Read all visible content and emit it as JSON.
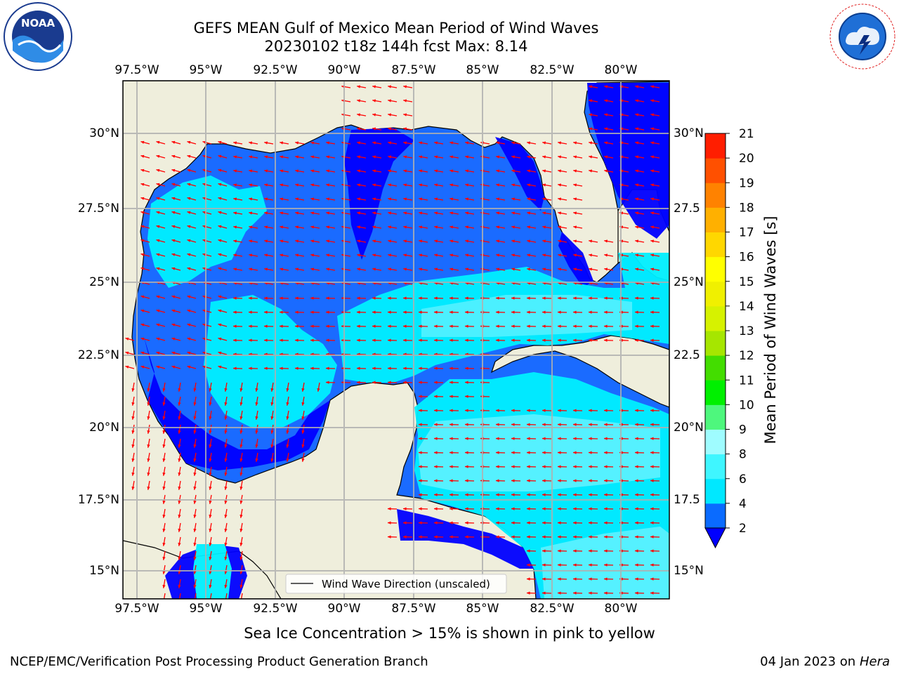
{
  "title_line1": "GEFS MEAN Gulf of Mexico Mean Period of Wind Waves",
  "title_line2": "20230102 t18z 144h fcst   Max: 8.14",
  "longitude_labels": [
    "97.5°W",
    "95°W",
    "92.5°W",
    "90°W",
    "87.5°W",
    "85°W",
    "82.5°W",
    "80°W"
  ],
  "latitude_labels": [
    "30°N",
    "27.5°N",
    "25°N",
    "22.5°N",
    "20°N",
    "17.5°N",
    "15°N"
  ],
  "latitude_labels_right": [
    "30°N",
    "27.5",
    "25°N",
    "22.5",
    "20°N",
    "17.5",
    "15°N"
  ],
  "colorbar": {
    "label": "Mean Period of Wind Waves [s]",
    "ticks": [
      "2",
      "4",
      "6",
      "8",
      "9",
      "10",
      "11",
      "12",
      "13",
      "14",
      "15",
      "16",
      "17",
      "18",
      "19",
      "20",
      "21"
    ],
    "colors": [
      "#0a6bff",
      "#00e8ff",
      "#3ff6ff",
      "#9ffcff",
      "#4ef77d",
      "#00f000",
      "#43dd00",
      "#a6e600",
      "#d6f200",
      "#f0f000",
      "#ffff00",
      "#ffd700",
      "#ffb000",
      "#ff8200",
      "#ff5000",
      "#ff1e00"
    ],
    "under_color": "#0000ff"
  },
  "legend": {
    "label": "Wind Wave Direction (unscaled)"
  },
  "note": "Sea Ice Concentration > 15% is shown in pink to yellow",
  "footer_left": "NCEP/EMC/Verification Post Processing Product Generation Branch",
  "footer_right_date": "04 Jan 2023 on",
  "footer_right_machine": "Hera",
  "logos": {
    "left": {
      "text": "NOAA",
      "ring_text": "NATIONAL OCEANIC AND ATMOSPHERIC ADMINISTRATION · U.S. DEPARTMENT OF COMMERCE"
    },
    "right": {
      "ring_text": "NATIONAL WEATHER SERVICE"
    }
  },
  "map_colors": {
    "land": "#efeedc",
    "coast": "#000000",
    "grid": "#b0b0b0",
    "arrow": "#ff0000",
    "dark_blue": "#0000ff",
    "blue": "#1a6bff",
    "cyan": "#00f0ff",
    "light_cyan": "#50f8ff"
  }
}
